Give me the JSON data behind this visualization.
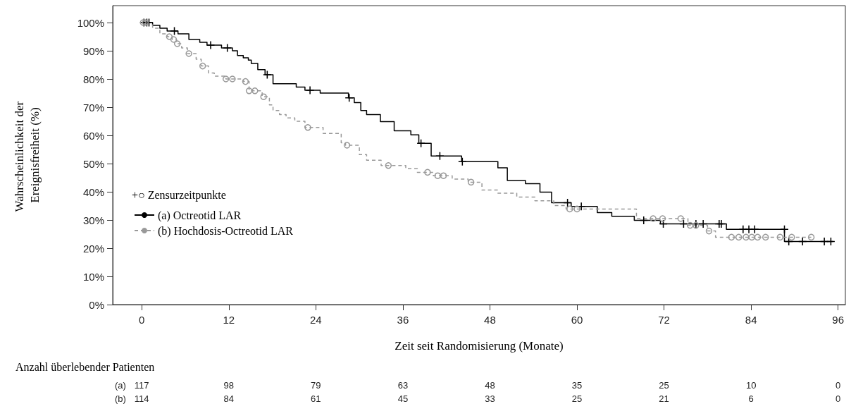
{
  "chart_data": {
    "type": "step",
    "xlabel": "Zeit seit Randomisierung (Monate)",
    "ylabel": "Wahrscheinlichkeit der Ereignisfreiheit (%)",
    "legend_title": "+○ Zensurzeitpunkte",
    "legend": "left",
    "grid": false,
    "xlim": [
      -4,
      97
    ],
    "xticks": [
      0,
      12,
      24,
      36,
      48,
      60,
      72,
      84,
      96
    ],
    "ylim": [
      0,
      106
    ],
    "yticks": [
      {
        "value": 0,
        "label": "0%"
      },
      {
        "value": 10,
        "label": "10%"
      },
      {
        "value": 20,
        "label": "20%"
      },
      {
        "value": 30,
        "label": "30%"
      },
      {
        "value": 40,
        "label": "40%"
      },
      {
        "value": 50,
        "label": "50%"
      },
      {
        "value": 60,
        "label": "60%"
      },
      {
        "value": 70,
        "label": "70%"
      },
      {
        "value": 80,
        "label": "80%"
      },
      {
        "value": 90,
        "label": "90%"
      },
      {
        "value": 100,
        "label": "100%"
      }
    ],
    "series": [
      {
        "name": "(a) Octreotid LAR",
        "color": "#000000",
        "line_style": "solid",
        "x": [
          0,
          1.5,
          2.5,
          3.5,
          5,
          6.5,
          8,
          9,
          11,
          12.5,
          13.2,
          14,
          14.7,
          15.1,
          16,
          17,
          18.1,
          21.3,
          22.5,
          24.6,
          28.5,
          29.3,
          30.2,
          31,
          32.9,
          34.8,
          37.1,
          38.2,
          39.9,
          44.1,
          49.1,
          50.4,
          52.9,
          54.9,
          56.5,
          59.2,
          62.8,
          64.8,
          67.9,
          71.5,
          80.6,
          88.6,
          95.3
        ],
        "values": [
          100,
          99,
          98,
          97,
          96,
          94,
          93,
          92,
          91,
          90,
          88.3,
          87.5,
          86.7,
          85.5,
          83.3,
          81.5,
          78.3,
          77.1,
          76,
          75,
          73.3,
          71.6,
          68.8,
          67.4,
          64.9,
          61.6,
          60.2,
          57.2,
          52.7,
          50.7,
          48.5,
          44,
          42.9,
          39.9,
          36.1,
          34.8,
          32.6,
          31.3,
          29.9,
          28.6,
          26.7,
          22.4,
          22.4
        ]
      },
      {
        "type": "scatter",
        "marker": "cross",
        "color": "#000000",
        "x": [
          0.3,
          0.7,
          1.0,
          4.5,
          9.5,
          11.8,
          17.3,
          23.2,
          28.6,
          38.5,
          41.1,
          44.2,
          58.7,
          60.6,
          69.2,
          71.9,
          74.7,
          76.4,
          77.4,
          79.6,
          79.9,
          82.9,
          83.7,
          84.5,
          88.6,
          89.2,
          91.1,
          94.1,
          95.0
        ],
        "values": [
          100,
          100,
          100,
          97,
          92,
          91,
          81.5,
          76,
          73.3,
          57.2,
          52.7,
          50.7,
          36.1,
          34.8,
          29.9,
          28.6,
          28.6,
          28.6,
          28.6,
          28.6,
          28.6,
          26.7,
          26.7,
          26.7,
          26.7,
          22.4,
          22.4,
          22.4,
          22.4
        ]
      },
      {
        "name": "(b) Hochdosis-Octreotid LAR",
        "color": "#999999",
        "line_style": "dashed",
        "x": [
          0,
          1.5,
          2.5,
          3.5,
          4.2,
          4.8,
          5.5,
          6.3,
          7.5,
          8.2,
          9.2,
          10,
          11.6,
          14,
          14.8,
          16.6,
          17.6,
          18.1,
          19,
          19.9,
          21.1,
          22.5,
          25,
          27.5,
          28.1,
          30,
          31,
          33,
          36.4,
          38,
          40.2,
          42.8,
          45,
          46.9,
          49.1,
          51.7,
          54.2,
          56.8,
          58.5,
          68.2,
          75.3,
          78,
          79.1,
          92.3
        ],
        "values": [
          100,
          98,
          96,
          95,
          94,
          92.5,
          91,
          89,
          87,
          84.6,
          82.1,
          81,
          80,
          79.1,
          75.8,
          73.7,
          70.8,
          68.8,
          67.4,
          66.2,
          65,
          62.8,
          60.7,
          57.4,
          56.5,
          53.2,
          51.2,
          49.3,
          48.2,
          46.9,
          45.7,
          44.5,
          43.4,
          40.6,
          39.5,
          38.1,
          36.8,
          35.1,
          33.9,
          30.5,
          28.1,
          26.1,
          23.9,
          23.9
        ]
      },
      {
        "type": "scatter",
        "marker": "circle",
        "color": "#999999",
        "x": [
          0.2,
          0.5,
          3.8,
          4.4,
          4.9,
          6.5,
          8.4,
          11.6,
          12.5,
          14.3,
          14.8,
          15.6,
          16.8,
          22.9,
          28.3,
          34.0,
          39.4,
          40.8,
          41.6,
          45.4,
          59.0,
          60.0,
          70.5,
          71.8,
          74.3,
          75.6,
          76.4,
          78.2,
          81.3,
          82.3,
          83.3,
          84.1,
          84.9,
          86.0,
          88.0,
          89.6,
          92.3
        ],
        "values": [
          100,
          100,
          95,
          94,
          92.5,
          89,
          84.6,
          80,
          80,
          79.1,
          75.8,
          75.8,
          73.7,
          62.8,
          56.5,
          49.3,
          46.9,
          45.7,
          45.7,
          43.4,
          33.9,
          33.9,
          30.5,
          30.5,
          30.5,
          28.1,
          28.1,
          26.1,
          23.9,
          23.9,
          23.9,
          23.9,
          23.9,
          23.9,
          23.9,
          23.9,
          23.9
        ]
      }
    ],
    "annotations": [
      "Anzahl überlebender Patienten",
      "(a)",
      "117",
      "98",
      "79",
      "63",
      "48",
      "35",
      "25",
      "10",
      "0",
      "(b)",
      "114",
      "84",
      "61",
      "45",
      "33",
      "25",
      "21",
      "6",
      "0"
    ]
  }
}
